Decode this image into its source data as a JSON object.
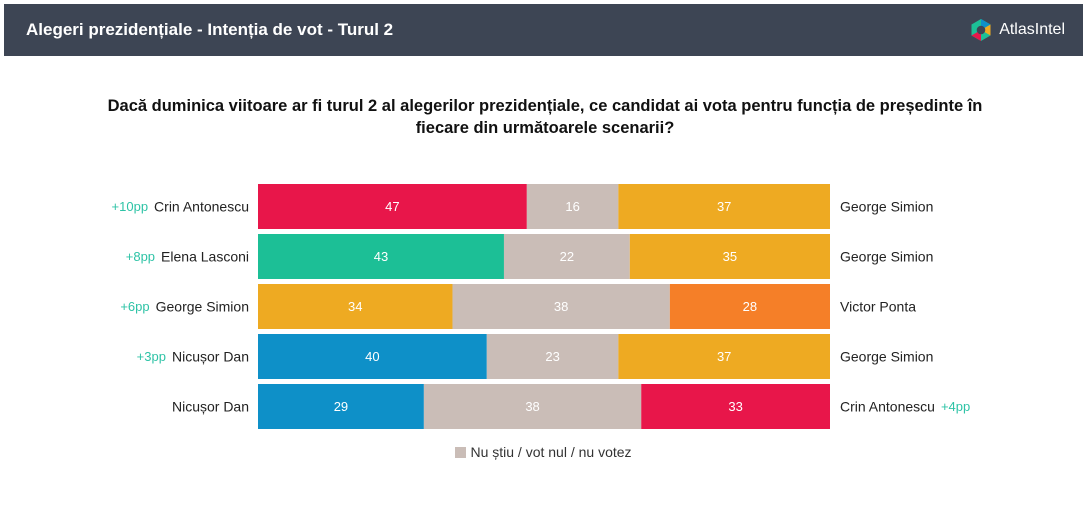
{
  "header": {
    "title": "Alegeri prezidențiale - Intenția de vot - Turul 2",
    "brand": "AtlasIntel"
  },
  "question": "Dacă duminica viitoare ar fi turul 2 al alegerilor prezidențiale, ce candidat ai vota pentru funcția de președinte în fiecare din următoarele scenarii?",
  "colors": {
    "header_bg": "#3d4554",
    "undecided": "#cabdb7",
    "delta_text": "#2ec3a6",
    "Crin Antonescu": "#e8164a",
    "George Simion": "#eeaa22",
    "Elena Lasconi": "#1cbf96",
    "Nicușor Dan": "#0e90c8",
    "Victor Ponta": "#f57f28"
  },
  "chart_data": {
    "type": "bar",
    "stacked": true,
    "orientation": "horizontal",
    "scenarios": [
      {
        "left": "Crin Antonescu",
        "left_delta": "+10pp",
        "left_value": 47,
        "undecided": 16,
        "right_value": 37,
        "right": "George Simion",
        "right_delta": ""
      },
      {
        "left": "Elena Lasconi",
        "left_delta": "+8pp",
        "left_value": 43,
        "undecided": 22,
        "right_value": 35,
        "right": "George Simion",
        "right_delta": ""
      },
      {
        "left": "George Simion",
        "left_delta": "+6pp",
        "left_value": 34,
        "undecided": 38,
        "right_value": 28,
        "right": "Victor Ponta",
        "right_delta": ""
      },
      {
        "left": "Nicușor Dan",
        "left_delta": "+3pp",
        "left_value": 40,
        "undecided": 23,
        "right_value": 37,
        "right": "George Simion",
        "right_delta": ""
      },
      {
        "left": "Nicușor Dan",
        "left_delta": "",
        "left_value": 29,
        "undecided": 38,
        "right_value": 33,
        "right": "Crin Antonescu",
        "right_delta": "+4pp"
      }
    ],
    "legend": [
      "Nu știu / vot nul / nu votez"
    ],
    "xlim": [
      0,
      100
    ]
  }
}
